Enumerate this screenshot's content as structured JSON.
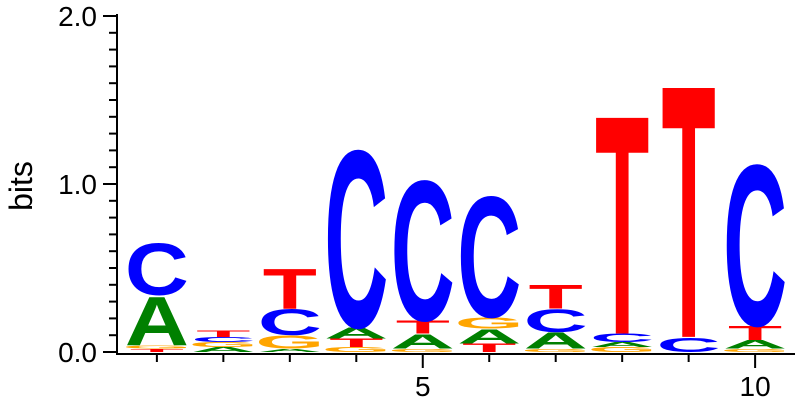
{
  "chart_data": {
    "type": "sequence-logo",
    "ylabel": "bits",
    "ylim": [
      0,
      2
    ],
    "yticks": [
      {
        "value": 0,
        "label": "0.0"
      },
      {
        "value": 1,
        "label": "1.0"
      },
      {
        "value": 2,
        "label": "2.0"
      }
    ],
    "xlim": [
      0.4,
      10.6
    ],
    "xticks": [
      {
        "value": 5,
        "label": "5"
      },
      {
        "value": 10,
        "label": "10"
      }
    ],
    "colors": {
      "A": "#008000",
      "C": "#0000ff",
      "G": "#ffa500",
      "T": "#ff0000"
    },
    "positions": [
      {
        "pos": 1,
        "stack": [
          {
            "letter": "T",
            "h": 0.02
          },
          {
            "letter": "G",
            "h": 0.02
          },
          {
            "letter": "A",
            "h": 0.3
          },
          {
            "letter": "C",
            "h": 0.32
          }
        ]
      },
      {
        "pos": 2,
        "stack": [
          {
            "letter": "A",
            "h": 0.03
          },
          {
            "letter": "G",
            "h": 0.03
          },
          {
            "letter": "C",
            "h": 0.03
          },
          {
            "letter": "T",
            "h": 0.04
          }
        ]
      },
      {
        "pos": 3,
        "stack": [
          {
            "letter": "A",
            "h": 0.02
          },
          {
            "letter": "G",
            "h": 0.08
          },
          {
            "letter": "C",
            "h": 0.16
          },
          {
            "letter": "T",
            "h": 0.25
          }
        ]
      },
      {
        "pos": 4,
        "stack": [
          {
            "letter": "G",
            "h": 0.03
          },
          {
            "letter": "T",
            "h": 0.05
          },
          {
            "letter": "A",
            "h": 0.07
          },
          {
            "letter": "C",
            "h": 1.1
          }
        ]
      },
      {
        "pos": 5,
        "stack": [
          {
            "letter": "G",
            "h": 0.02
          },
          {
            "letter": "A",
            "h": 0.09
          },
          {
            "letter": "T",
            "h": 0.08
          },
          {
            "letter": "C",
            "h": 0.87
          }
        ]
      },
      {
        "pos": 6,
        "stack": [
          {
            "letter": "T",
            "h": 0.05
          },
          {
            "letter": "A",
            "h": 0.09
          },
          {
            "letter": "G",
            "h": 0.07
          },
          {
            "letter": "C",
            "h": 0.75
          }
        ]
      },
      {
        "pos": 7,
        "stack": [
          {
            "letter": "G",
            "h": 0.02
          },
          {
            "letter": "A",
            "h": 0.1
          },
          {
            "letter": "C",
            "h": 0.14
          },
          {
            "letter": "T",
            "h": 0.15
          }
        ]
      },
      {
        "pos": 8,
        "stack": [
          {
            "letter": "G",
            "h": 0.03
          },
          {
            "letter": "A",
            "h": 0.03
          },
          {
            "letter": "C",
            "h": 0.05
          },
          {
            "letter": "T",
            "h": 1.36
          }
        ]
      },
      {
        "pos": 9,
        "stack": [
          {
            "letter": "C",
            "h": 0.09
          },
          {
            "letter": "T",
            "h": 1.57
          }
        ]
      },
      {
        "pos": 10,
        "stack": [
          {
            "letter": "G",
            "h": 0.02
          },
          {
            "letter": "A",
            "h": 0.05
          },
          {
            "letter": "T",
            "h": 0.09
          },
          {
            "letter": "C",
            "h": 1.0
          }
        ]
      }
    ]
  }
}
